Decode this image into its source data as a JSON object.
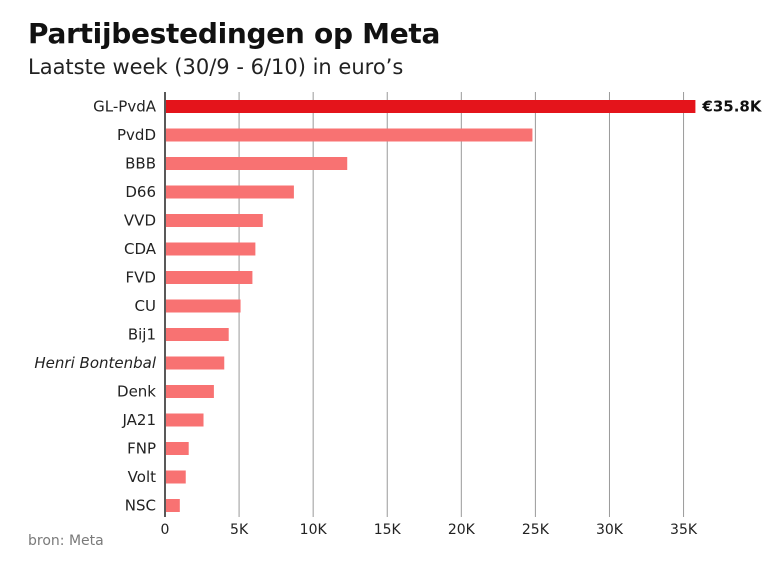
{
  "title": "Partijbestedingen op Meta",
  "subtitle": "Laatste week (30/9 - 6/10) in euro’s",
  "source": "bron: Meta",
  "colors": {
    "highlight": "#e4141b",
    "bar": "#f87272",
    "grid": "#9a9a9a",
    "axis": "#222222"
  },
  "chart_data": {
    "type": "bar",
    "orientation": "horizontal",
    "categories": [
      "GL-PvdA",
      "PvdD",
      "BBB",
      "D66",
      "VVD",
      "CDA",
      "FVD",
      "CU",
      "Bij1",
      "Henri Bontenbal",
      "Denk",
      "JA21",
      "FNP",
      "Volt",
      "NSC"
    ],
    "italic_categories": [
      "Henri Bontenbal"
    ],
    "values": [
      35800,
      24800,
      12300,
      8700,
      6600,
      6100,
      5900,
      5100,
      4300,
      4000,
      3300,
      2600,
      1600,
      1400,
      1000
    ],
    "highlight_index": 0,
    "data_labels": [
      {
        "index": 0,
        "text": "€35.8K"
      }
    ],
    "xlim": [
      0,
      38000
    ],
    "xticks": [
      0,
      5000,
      10000,
      15000,
      20000,
      25000,
      30000,
      35000
    ],
    "xtick_labels": [
      "0",
      "5K",
      "10K",
      "15K",
      "20K",
      "25K",
      "30K",
      "35K"
    ],
    "grid": "vertical"
  }
}
